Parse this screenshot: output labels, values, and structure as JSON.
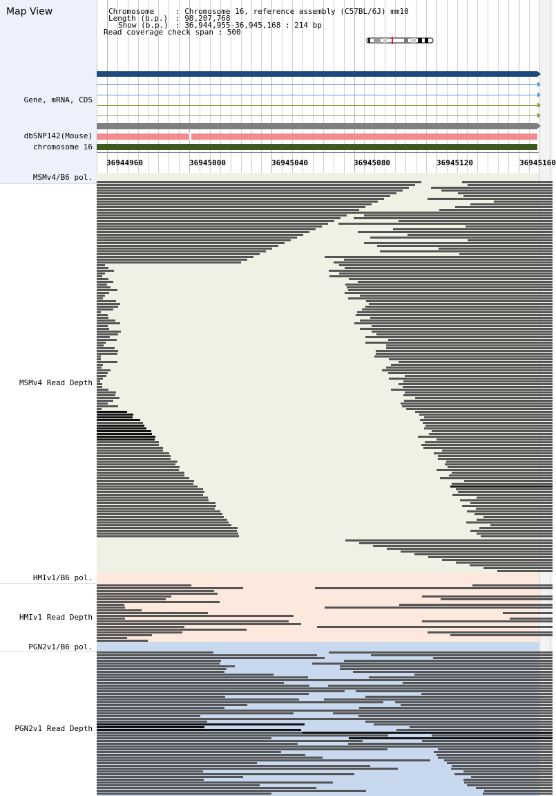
{
  "header": {
    "title": "Map View"
  },
  "info": {
    "chromosome_key": "Chromosome",
    "chromosome_val": ": Chromosome 16, reference assembly (C57BL/6J) mm10",
    "length_key": "Length (b.p.)",
    "length_val": ": 98,207,768",
    "show_key": "Show (b.p.)",
    "show_val": ": 36,944,955-36,945,168 : 214 bp",
    "span_line": "Read coverage check span : 500"
  },
  "tracks": {
    "gene": "Gene, mRNA, CDS",
    "dbsnp": "dbSNP142(Mouse)",
    "chromosome": "chromosome 16",
    "msm_pol": "MSMv4/B6 pol.",
    "msm_depth": "MSMv4 Read Depth",
    "hmi_pol": "HMIv1/B6 pol.",
    "hmi_depth": "HMIv1 Read Depth",
    "pgn_pol": "PGN2v1/B6 pol.",
    "pgn_depth": "PGN2v1 Read Depth"
  },
  "ruler": {
    "ticks": [
      "36944960",
      "36945000",
      "36945040",
      "36945080",
      "36945120",
      "36945160"
    ]
  },
  "colors": {
    "msm_band": "#eef2e4",
    "hmi_band": "#fce8dc",
    "pgn_band": "#c8d8ee",
    "gene_bar": "#1f497d",
    "mrna_line": "#5b9bd5",
    "cds_line": "#8c9c3c",
    "snp_bar": "#f28b8f",
    "chrom_bar": "#3d5a1e",
    "read": "#555555"
  },
  "icons": {
    "ideogram": "chromosome-ideogram-icon",
    "arrow": "arrow-right-icon"
  }
}
